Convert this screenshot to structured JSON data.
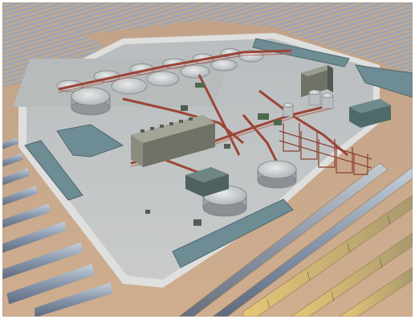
{
  "image": {
    "kind": "photo-illustration",
    "subject": "",
    "palette": {
      "sand": "#c9a98a",
      "sand_dark": "#b8967a",
      "pad": "#c4c7c8",
      "pad_edge": "#e2e3e2",
      "mirror": "#7c8aa0",
      "mirror_light": "#b3bfcc",
      "mirror_gold": "#d8b25a",
      "pipe": "#a14a3c",
      "tank": "#cfd2d3",
      "tank_shade": "#8f9598",
      "building": "#8a8c7e",
      "building_dark": "#5f6259",
      "pond": "#6f8d95",
      "frame": "#ffffff"
    }
  }
}
